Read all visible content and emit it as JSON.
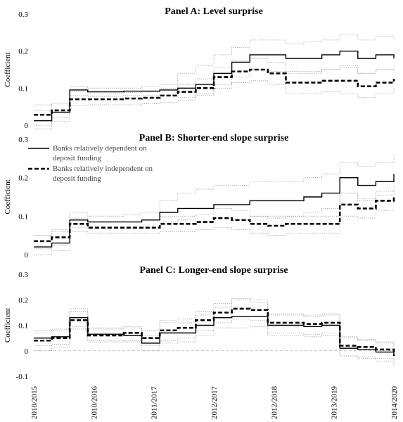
{
  "chart_data": [
    {
      "type": "line",
      "title": "Panel A: Level surprise",
      "ylabel": "Coefficient",
      "ylim": [
        0,
        0.3
      ],
      "yticks": [
        "0",
        "0.1",
        "0.2",
        "0.3"
      ],
      "x": [
        0,
        5,
        10,
        15,
        20,
        25,
        30,
        35,
        40,
        45,
        50,
        55,
        60,
        65,
        70,
        75,
        80,
        85,
        90,
        95,
        100
      ],
      "series": [
        {
          "name": "",
          "style": "solid",
          "values": [
            0.012,
            0.035,
            0.095,
            0.09,
            0.09,
            0.092,
            0.092,
            0.095,
            0.1,
            0.11,
            0.14,
            0.17,
            0.19,
            0.19,
            0.18,
            0.18,
            0.19,
            0.2,
            0.18,
            0.19,
            0.18
          ]
        },
        {
          "name": "",
          "style": "dashed",
          "values": [
            0.028,
            0.04,
            0.07,
            0.07,
            0.07,
            0.072,
            0.074,
            0.08,
            0.09,
            0.1,
            0.13,
            0.145,
            0.15,
            0.14,
            0.115,
            0.115,
            0.12,
            0.12,
            0.105,
            0.115,
            0.125
          ]
        },
        {
          "name": "",
          "style": "ci",
          "values": [
            0.04,
            0.06,
            0.105,
            0.1,
            0.1,
            0.1,
            0.105,
            0.11,
            0.14,
            0.16,
            0.19,
            0.21,
            0.23,
            0.23,
            0.22,
            0.225,
            0.23,
            0.245,
            0.23,
            0.24,
            0.23
          ]
        },
        {
          "name": "",
          "style": "ci",
          "values": [
            -0.01,
            0.01,
            0.08,
            0.078,
            0.078,
            0.08,
            0.08,
            0.08,
            0.075,
            0.085,
            0.11,
            0.13,
            0.15,
            0.145,
            0.14,
            0.14,
            0.15,
            0.155,
            0.14,
            0.15,
            0.14
          ]
        },
        {
          "name": "",
          "style": "ci",
          "values": [
            0.055,
            0.06,
            0.09,
            0.085,
            0.085,
            0.088,
            0.09,
            0.1,
            0.11,
            0.125,
            0.155,
            0.175,
            0.18,
            0.17,
            0.145,
            0.145,
            0.15,
            0.16,
            0.14,
            0.15,
            0.16
          ]
        },
        {
          "name": "",
          "style": "ci",
          "values": [
            0.0,
            0.02,
            0.052,
            0.055,
            0.055,
            0.055,
            0.058,
            0.062,
            0.068,
            0.08,
            0.1,
            0.115,
            0.12,
            0.11,
            0.085,
            0.085,
            0.09,
            0.085,
            0.075,
            0.085,
            0.1
          ]
        }
      ]
    },
    {
      "type": "line",
      "title": "Panel B: Shorter-end slope surprise",
      "ylabel": "Coefficient",
      "ylim": [
        0,
        0.3
      ],
      "yticks": [
        "0",
        "0.1",
        "0.2",
        "0.3"
      ],
      "legend": [
        "Banks relatively dependent on deposit funding",
        "Banks relatively independent on deposit funding"
      ],
      "legend_lines": [
        [
          "Banks relatively dependent on",
          "deposit funding"
        ],
        [
          "Banks relatively independent on",
          "deposit funding"
        ]
      ],
      "x": [
        0,
        5,
        10,
        15,
        20,
        25,
        30,
        35,
        40,
        45,
        50,
        55,
        60,
        65,
        70,
        75,
        80,
        85,
        90,
        95,
        100
      ],
      "series": [
        {
          "name": "Banks relatively dependent on deposit funding",
          "style": "solid",
          "values": [
            0.02,
            0.03,
            0.09,
            0.085,
            0.085,
            0.085,
            0.09,
            0.11,
            0.12,
            0.12,
            0.13,
            0.13,
            0.14,
            0.14,
            0.14,
            0.15,
            0.16,
            0.2,
            0.18,
            0.19,
            0.21
          ]
        },
        {
          "name": "Banks relatively independent on deposit funding",
          "style": "dashed",
          "values": [
            0.035,
            0.045,
            0.08,
            0.07,
            0.07,
            0.07,
            0.07,
            0.08,
            0.08,
            0.085,
            0.095,
            0.09,
            0.08,
            0.075,
            0.08,
            0.08,
            0.08,
            0.13,
            0.12,
            0.14,
            0.15
          ]
        },
        {
          "name": "",
          "style": "ci",
          "values": [
            0.05,
            0.06,
            0.11,
            0.1,
            0.1,
            0.105,
            0.11,
            0.14,
            0.16,
            0.17,
            0.18,
            0.18,
            0.19,
            0.19,
            0.19,
            0.2,
            0.21,
            0.24,
            0.23,
            0.24,
            0.26
          ]
        },
        {
          "name": "",
          "style": "ci",
          "values": [
            0.0,
            0.01,
            0.07,
            0.068,
            0.068,
            0.068,
            0.07,
            0.085,
            0.09,
            0.085,
            0.095,
            0.09,
            0.1,
            0.1,
            0.1,
            0.11,
            0.12,
            0.16,
            0.14,
            0.155,
            0.165
          ]
        },
        {
          "name": "",
          "style": "ci",
          "values": [
            0.05,
            0.065,
            0.095,
            0.085,
            0.085,
            0.085,
            0.09,
            0.1,
            0.1,
            0.105,
            0.12,
            0.115,
            0.1,
            0.095,
            0.1,
            0.1,
            0.1,
            0.16,
            0.145,
            0.165,
            0.18
          ]
        },
        {
          "name": "",
          "style": "ci",
          "values": [
            0.015,
            0.025,
            0.06,
            0.055,
            0.055,
            0.055,
            0.055,
            0.06,
            0.06,
            0.065,
            0.07,
            0.065,
            0.055,
            0.05,
            0.055,
            0.055,
            0.055,
            0.1,
            0.095,
            0.115,
            0.12
          ]
        }
      ]
    },
    {
      "type": "line",
      "title": "Panel C: Longer-end slope surprise",
      "ylabel": "Coefficient",
      "ylim": [
        -0.1,
        0.3
      ],
      "yticks": [
        "-0.1",
        "0",
        "0.1",
        "0.2",
        "0.3"
      ],
      "x": [
        0,
        5,
        10,
        15,
        20,
        25,
        30,
        35,
        40,
        45,
        50,
        55,
        60,
        65,
        70,
        75,
        80,
        85,
        90,
        95,
        100
      ],
      "xticks": [
        "2010/2015",
        "2010/2016",
        "2011/2017",
        "2012/2017",
        "2012/2018",
        "2013/2019",
        "2014/2020"
      ],
      "series": [
        {
          "name": "",
          "style": "solid",
          "values": [
            0.05,
            0.055,
            0.13,
            0.065,
            0.065,
            0.06,
            0.03,
            0.07,
            0.07,
            0.1,
            0.13,
            0.135,
            0.135,
            0.1,
            0.1,
            0.095,
            0.1,
            0.01,
            0.005,
            -0.005,
            -0.015
          ]
        },
        {
          "name": "",
          "style": "dashed",
          "values": [
            0.04,
            0.05,
            0.12,
            0.06,
            0.06,
            0.07,
            0.05,
            0.08,
            0.09,
            0.12,
            0.15,
            0.165,
            0.16,
            0.11,
            0.11,
            0.105,
            0.11,
            0.02,
            0.015,
            0.005,
            -0.02
          ]
        },
        {
          "name": "",
          "style": "ci",
          "values": [
            0.08,
            0.085,
            0.165,
            0.09,
            0.09,
            0.09,
            0.06,
            0.11,
            0.11,
            0.14,
            0.17,
            0.2,
            0.19,
            0.14,
            0.14,
            0.135,
            0.14,
            0.05,
            0.04,
            0.03,
            0.02
          ]
        },
        {
          "name": "",
          "style": "ci",
          "values": [
            0.02,
            0.025,
            0.095,
            0.04,
            0.04,
            0.035,
            0.0,
            0.03,
            0.035,
            0.06,
            0.09,
            0.09,
            0.095,
            0.06,
            0.06,
            0.055,
            0.06,
            -0.02,
            -0.03,
            -0.04,
            -0.05
          ]
        },
        {
          "name": "",
          "style": "ci",
          "values": [
            0.07,
            0.08,
            0.155,
            0.085,
            0.085,
            0.095,
            0.08,
            0.12,
            0.125,
            0.155,
            0.185,
            0.205,
            0.2,
            0.145,
            0.145,
            0.14,
            0.145,
            0.055,
            0.045,
            0.035,
            0.01
          ]
        },
        {
          "name": "",
          "style": "ci",
          "values": [
            0.0,
            0.015,
            0.085,
            0.035,
            0.035,
            0.04,
            0.02,
            0.04,
            0.05,
            0.08,
            0.11,
            0.125,
            0.12,
            0.07,
            0.07,
            0.065,
            0.07,
            -0.02,
            -0.025,
            -0.03,
            -0.06
          ]
        }
      ],
      "zero_line": true
    }
  ]
}
